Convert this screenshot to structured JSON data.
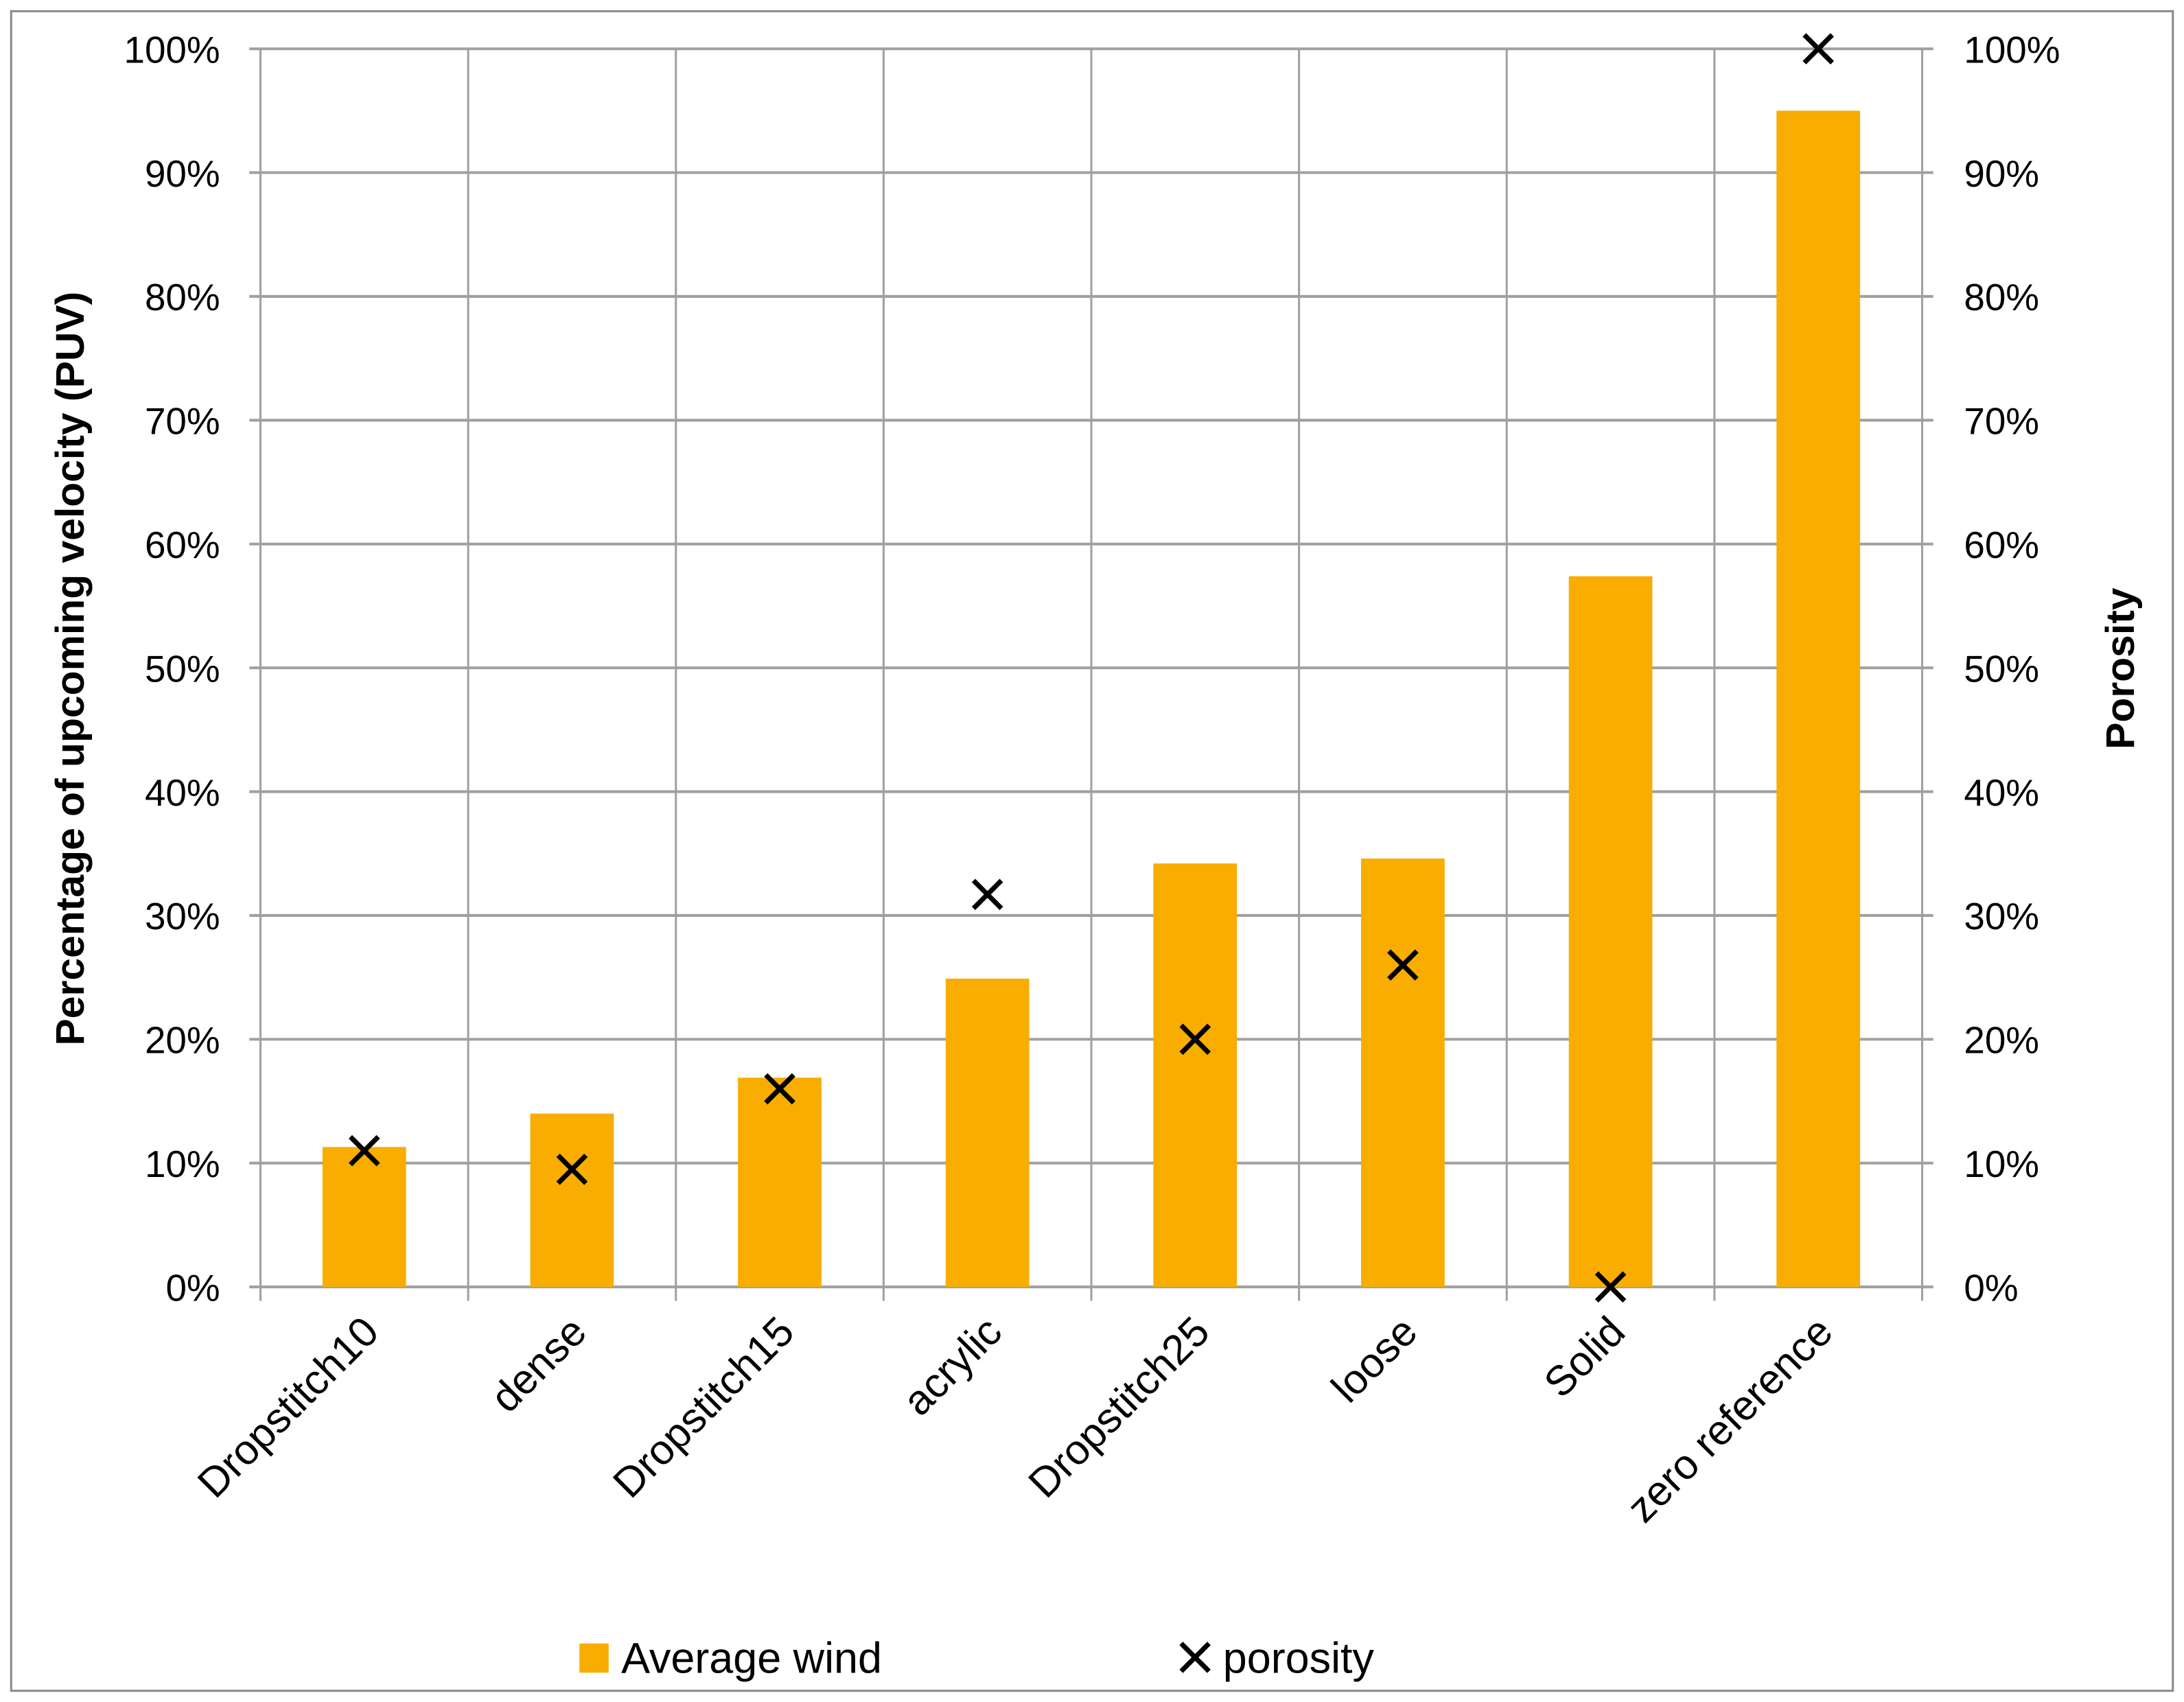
{
  "chart_data": {
    "type": "bar",
    "categories": [
      "Dropstitch10",
      "dense",
      "Dropstitch15",
      "acrylic",
      "Dropstitch25",
      "loose",
      "Solid",
      "zero reference"
    ],
    "series": [
      {
        "name": "Average wind",
        "type": "bar",
        "axis": "left",
        "color": "#F8AD00",
        "values": [
          11.3,
          14.0,
          16.9,
          24.9,
          34.2,
          34.6,
          57.4,
          95.0
        ]
      },
      {
        "name": "porosity",
        "type": "scatter",
        "marker": "x",
        "axis": "right",
        "color": "#000000",
        "values": [
          11.0,
          9.5,
          16.0,
          31.7,
          20.0,
          26.0,
          0,
          100
        ]
      }
    ],
    "ylabel": "Percentage of upcoming velocity (PUV)",
    "y2label": "Porosity",
    "ylim": [
      0,
      100
    ],
    "y2lim": [
      0,
      100
    ],
    "yticks": [
      "0%",
      "10%",
      "20%",
      "30%",
      "40%",
      "50%",
      "60%",
      "70%",
      "80%",
      "90%",
      "100%"
    ],
    "y2ticks": [
      "0%",
      "10%",
      "20%",
      "30%",
      "40%",
      "50%",
      "60%",
      "70%",
      "80%",
      "90%",
      "100%"
    ],
    "grid": true,
    "legend": "bottom",
    "gridcolor": "#A0A0A0"
  }
}
